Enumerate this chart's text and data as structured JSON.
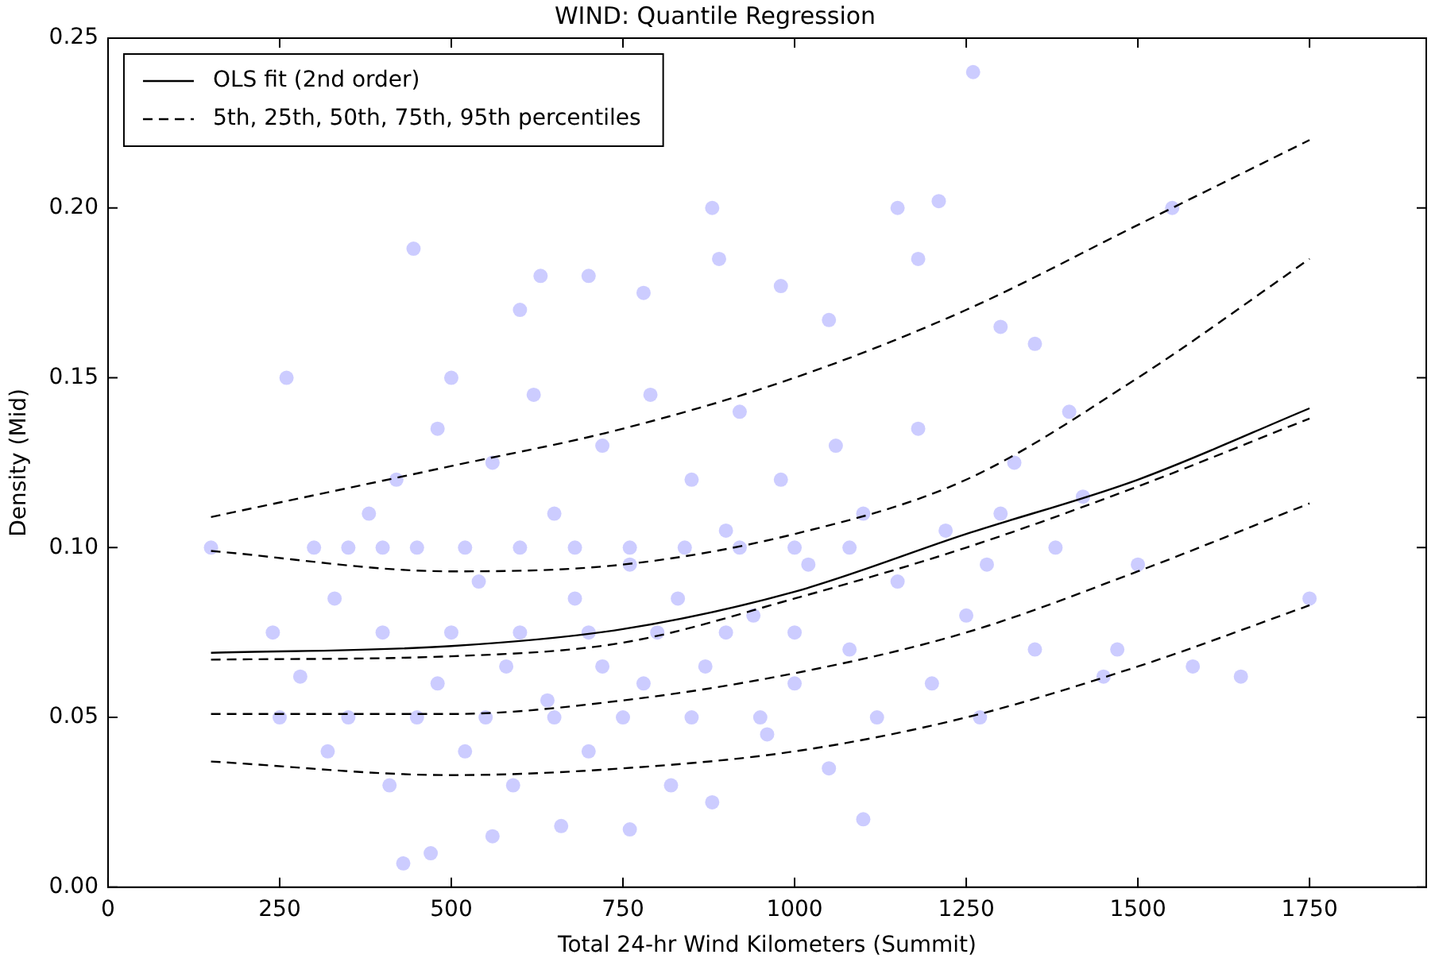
{
  "chart_data": {
    "type": "scatter",
    "title": "WIND: Quantile Regression",
    "xlabel": "Total 24-hr Wind Kilometers (Summit)",
    "ylabel": "Density (Mid)",
    "xlim": [
      0,
      1920
    ],
    "xticks": [
      0,
      250,
      500,
      750,
      1000,
      1250,
      1500,
      1750
    ],
    "ylim": [
      0,
      0.25
    ],
    "yticks": [
      {
        "value": 0,
        "label": "0.00"
      },
      {
        "value": 0.05,
        "label": "0.05"
      },
      {
        "value": 0.1,
        "label": "0.10"
      },
      {
        "value": 0.15,
        "label": "0.15"
      },
      {
        "value": 0.2,
        "label": "0.20"
      },
      {
        "value": 0.25,
        "label": "0.25"
      }
    ],
    "grid": false,
    "legend": "top left",
    "series": [
      {
        "type": "scatter",
        "color": "#0000ff",
        "marker": "circle",
        "x": [
          150,
          260,
          445,
          430,
          470,
          560,
          660,
          760,
          1260,
          1100,
          1550,
          1650,
          1750,
          1580,
          1470,
          1450,
          1400,
          1350,
          1300,
          1210,
          1150,
          880,
          630,
          700,
          600,
          780,
          980,
          890,
          500,
          1050,
          1180,
          300,
          350,
          400,
          450,
          520,
          600,
          680,
          760,
          840,
          920,
          1000,
          1080,
          250,
          350,
          450,
          550,
          650,
          750,
          850,
          950,
          400,
          500,
          600,
          700,
          800,
          900,
          1000,
          240,
          280,
          320,
          330,
          380,
          410,
          420,
          480,
          480,
          520,
          540,
          560,
          580,
          590,
          620,
          640,
          650,
          680,
          700,
          720,
          720,
          760,
          780,
          790,
          820,
          830,
          850,
          870,
          880,
          900,
          920,
          940,
          960,
          980,
          1000,
          1020,
          1050,
          1060,
          1080,
          1100,
          1120,
          1150,
          1180,
          1200,
          1220,
          1250,
          1280,
          1300,
          1320,
          1350,
          1380,
          1420,
          1500,
          1270
        ],
        "values": [
          0.1,
          0.15,
          0.188,
          0.007,
          0.01,
          0.015,
          0.018,
          0.017,
          0.24,
          0.02,
          0.2,
          0.062,
          0.085,
          0.065,
          0.07,
          0.062,
          0.14,
          0.16,
          0.165,
          0.202,
          0.2,
          0.2,
          0.18,
          0.18,
          0.17,
          0.175,
          0.177,
          0.185,
          0.15,
          0.167,
          0.185,
          0.1,
          0.1,
          0.1,
          0.1,
          0.1,
          0.1,
          0.1,
          0.1,
          0.1,
          0.1,
          0.1,
          0.1,
          0.05,
          0.05,
          0.05,
          0.05,
          0.05,
          0.05,
          0.05,
          0.05,
          0.075,
          0.075,
          0.075,
          0.075,
          0.075,
          0.075,
          0.075,
          0.075,
          0.062,
          0.04,
          0.085,
          0.11,
          0.03,
          0.12,
          0.06,
          0.135,
          0.04,
          0.09,
          0.125,
          0.065,
          0.03,
          0.145,
          0.055,
          0.11,
          0.085,
          0.04,
          0.065,
          0.13,
          0.095,
          0.06,
          0.145,
          0.03,
          0.085,
          0.12,
          0.065,
          0.025,
          0.105,
          0.14,
          0.08,
          0.045,
          0.12,
          0.06,
          0.095,
          0.035,
          0.13,
          0.07,
          0.11,
          0.05,
          0.09,
          0.135,
          0.06,
          0.105,
          0.08,
          0.095,
          0.11,
          0.125,
          0.07,
          0.1,
          0.115,
          0.095,
          0.05
        ]
      },
      {
        "type": "line",
        "name": "OLS fit (2nd order)",
        "color": "#000000",
        "line_style": "solid",
        "marker": "none",
        "x": [
          150,
          500,
          750,
          1000,
          1250,
          1500,
          1750
        ],
        "values": [
          0.069,
          0.071,
          0.076,
          0.087,
          0.104,
          0.12,
          0.141
        ]
      },
      {
        "type": "line",
        "name": "5th, 25th, 50th, 75th, 95th percentiles",
        "color": "#000000",
        "line_style": "dashed",
        "marker": "none",
        "x": [
          150,
          500,
          750,
          1000,
          1250,
          1500,
          1750
        ],
        "values": [
          0.037,
          0.033,
          0.035,
          0.04,
          0.05,
          0.065,
          0.083
        ]
      },
      {
        "type": "line",
        "color": "#000000",
        "line_style": "dashed",
        "marker": "none",
        "x": [
          150,
          500,
          750,
          1000,
          1250,
          1500,
          1750
        ],
        "values": [
          0.051,
          0.051,
          0.055,
          0.063,
          0.075,
          0.093,
          0.113
        ]
      },
      {
        "type": "line",
        "color": "#000000",
        "line_style": "dashed",
        "marker": "none",
        "x": [
          150,
          500,
          750,
          1000,
          1250,
          1500,
          1750
        ],
        "values": [
          0.067,
          0.068,
          0.072,
          0.085,
          0.1,
          0.118,
          0.138
        ]
      },
      {
        "type": "line",
        "color": "#000000",
        "line_style": "dashed",
        "marker": "none",
        "x": [
          150,
          500,
          750,
          1000,
          1250,
          1500,
          1750
        ],
        "values": [
          0.099,
          0.093,
          0.095,
          0.104,
          0.12,
          0.15,
          0.185
        ]
      },
      {
        "type": "line",
        "color": "#000000",
        "line_style": "dashed",
        "marker": "none",
        "x": [
          150,
          500,
          750,
          1000,
          1250,
          1500,
          1750
        ],
        "values": [
          0.109,
          0.124,
          0.135,
          0.15,
          0.17,
          0.195,
          0.22
        ]
      }
    ]
  }
}
